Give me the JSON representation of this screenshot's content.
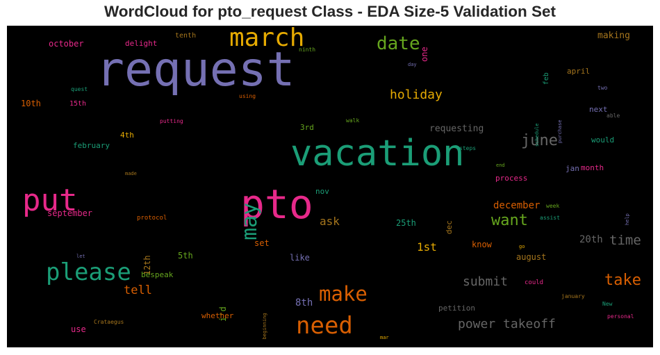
{
  "title": "WordCloud for pto_request Class - EDA Size-5 Validation Set",
  "chart_data": {
    "type": "wordcloud",
    "background": "#000000",
    "words": [
      {
        "text": "request",
        "color": "#7570b3"
      },
      {
        "text": "vacation",
        "color": "#1b9e77"
      },
      {
        "text": "pto",
        "color": "#e7298a"
      },
      {
        "text": "march",
        "color": "#e6ab02"
      },
      {
        "text": "put",
        "color": "#e7298a"
      },
      {
        "text": "please",
        "color": "#1b9e77"
      },
      {
        "text": "need",
        "color": "#d95f02"
      },
      {
        "text": "make",
        "color": "#d95f02"
      },
      {
        "text": "may",
        "color": "#1b9e77"
      },
      {
        "text": "date",
        "color": "#66a61e"
      },
      {
        "text": "take",
        "color": "#d95f02"
      },
      {
        "text": "june",
        "color": "#666666"
      },
      {
        "text": "want",
        "color": "#66a61e"
      },
      {
        "text": "time",
        "color": "#666666"
      },
      {
        "text": "holiday",
        "color": "#e6ab02"
      },
      {
        "text": "submit",
        "color": "#666666"
      },
      {
        "text": "power takeoff",
        "color": "#666666"
      },
      {
        "text": "tell",
        "color": "#d95f02"
      },
      {
        "text": "ask",
        "color": "#a6761d"
      },
      {
        "text": "1st",
        "color": "#e6ab02"
      },
      {
        "text": "20th",
        "color": "#666666"
      },
      {
        "text": "december",
        "color": "#d95f02"
      },
      {
        "text": "8th",
        "color": "#7570b3"
      },
      {
        "text": "requesting",
        "color": "#666666"
      },
      {
        "text": "october",
        "color": "#e7298a"
      },
      {
        "text": "delight",
        "color": "#e7298a"
      },
      {
        "text": "one",
        "color": "#e7298a"
      },
      {
        "text": "tenth",
        "color": "#a6761d"
      },
      {
        "text": "ninth",
        "color": "#66a61e"
      },
      {
        "text": "making",
        "color": "#a6761d"
      },
      {
        "text": "day",
        "color": "#7570b3"
      },
      {
        "text": "feb",
        "color": "#1b9e77"
      },
      {
        "text": "april",
        "color": "#a6761d"
      },
      {
        "text": "quest",
        "color": "#1b9e77"
      },
      {
        "text": "using",
        "color": "#d95f02"
      },
      {
        "text": "two",
        "color": "#7570b3"
      },
      {
        "text": "10th",
        "color": "#d95f02"
      },
      {
        "text": "15th",
        "color": "#e7298a"
      },
      {
        "text": "schedule",
        "color": "#1b9e77"
      },
      {
        "text": "purchase",
        "color": "#7570b3"
      },
      {
        "text": "next",
        "color": "#7570b3"
      },
      {
        "text": "able",
        "color": "#666666"
      },
      {
        "text": "putting",
        "color": "#e7298a"
      },
      {
        "text": "walk",
        "color": "#66a61e"
      },
      {
        "text": "3rd",
        "color": "#66a61e"
      },
      {
        "text": "4th",
        "color": "#e6ab02"
      },
      {
        "text": "would",
        "color": "#1b9e77"
      },
      {
        "text": "february",
        "color": "#1b9e77"
      },
      {
        "text": "steps",
        "color": "#1b9e77"
      },
      {
        "text": "end",
        "color": "#66a61e"
      },
      {
        "text": "jan",
        "color": "#7570b3"
      },
      {
        "text": "month",
        "color": "#e7298a"
      },
      {
        "text": "made",
        "color": "#a6761d"
      },
      {
        "text": "process",
        "color": "#e7298a"
      },
      {
        "text": "nov",
        "color": "#1b9e77"
      },
      {
        "text": "september",
        "color": "#e7298a"
      },
      {
        "text": "week",
        "color": "#66a61e"
      },
      {
        "text": "help",
        "color": "#7570b3"
      },
      {
        "text": "dec",
        "color": "#a6761d"
      },
      {
        "text": "assist",
        "color": "#1b9e77"
      },
      {
        "text": "protocol",
        "color": "#d95f02"
      },
      {
        "text": "25th",
        "color": "#1b9e77"
      },
      {
        "text": "12th",
        "color": "#a6761d"
      },
      {
        "text": "set",
        "color": "#d95f02"
      },
      {
        "text": "know",
        "color": "#d95f02"
      },
      {
        "text": "go",
        "color": "#e6ab02"
      },
      {
        "text": "let",
        "color": "#7570b3"
      },
      {
        "text": "5th",
        "color": "#66a61e"
      },
      {
        "text": "like",
        "color": "#7570b3"
      },
      {
        "text": "august",
        "color": "#a6761d"
      },
      {
        "text": "bespeak",
        "color": "#66a61e"
      },
      {
        "text": "beginning",
        "color": "#a6761d"
      },
      {
        "text": "could",
        "color": "#e7298a"
      },
      {
        "text": "i'd",
        "color": "#66a61e"
      },
      {
        "text": "january",
        "color": "#a6761d"
      },
      {
        "text": "petition",
        "color": "#666666"
      },
      {
        "text": "New",
        "color": "#1b9e77"
      },
      {
        "text": "whether",
        "color": "#d95f02"
      },
      {
        "text": "Crataegus",
        "color": "#a6761d"
      },
      {
        "text": "use",
        "color": "#e7298a"
      },
      {
        "text": "personal",
        "color": "#e7298a"
      },
      {
        "text": "mar",
        "color": "#e6ab02"
      }
    ]
  }
}
